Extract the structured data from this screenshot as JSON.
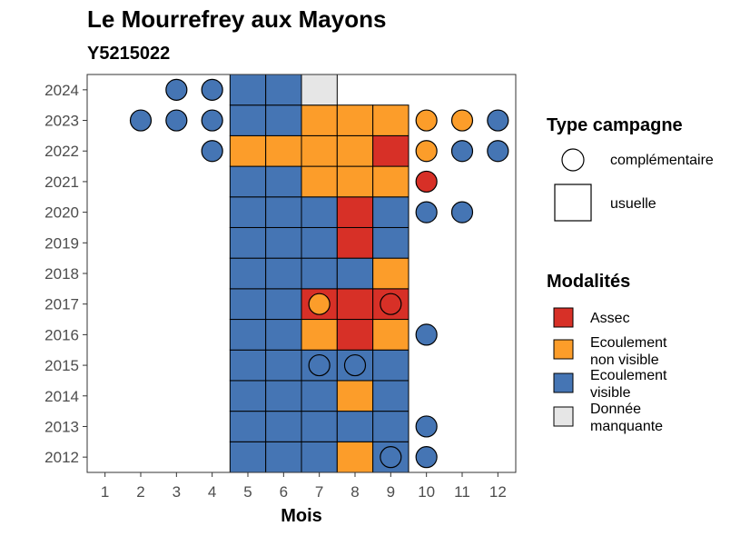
{
  "chart_data": {
    "type": "heatmap",
    "title": "Le Mourrefrey aux Mayons",
    "subtitle": "Y5215022",
    "xlabel": "Mois",
    "ylabel": "",
    "x_ticks": [
      "1",
      "2",
      "3",
      "4",
      "5",
      "6",
      "7",
      "8",
      "9",
      "10",
      "11",
      "12"
    ],
    "y_ticks": [
      "2012",
      "2013",
      "2014",
      "2015",
      "2016",
      "2017",
      "2018",
      "2019",
      "2020",
      "2021",
      "2022",
      "2023",
      "2024"
    ],
    "xlim": [
      0.5,
      12.5
    ],
    "ylim": [
      2011.5,
      2024.5
    ],
    "grid": false,
    "legend_position": "right",
    "colors": {
      "assec": "#d73027",
      "non_visible": "#fc9d2a",
      "visible": "#4575b4",
      "manquante": "#e6e6e6"
    },
    "legend_shape": {
      "title": "Type campagne",
      "items": [
        {
          "shape": "circle",
          "label": "complémentaire"
        },
        {
          "shape": "square",
          "label": "usuelle"
        }
      ]
    },
    "legend_fill": {
      "title": "Modalités",
      "items": [
        {
          "key": "assec",
          "lines": [
            "Assec"
          ]
        },
        {
          "key": "non_visible",
          "lines": [
            "Ecoulement",
            "non visible"
          ]
        },
        {
          "key": "visible",
          "lines": [
            "Ecoulement",
            "visible"
          ]
        },
        {
          "key": "manquante",
          "lines": [
            "Donnée",
            "manquante"
          ]
        }
      ]
    },
    "usuelle": [
      {
        "year": 2012,
        "months": {
          "5": "visible",
          "6": "visible",
          "7": "visible",
          "8": "non_visible",
          "9": "visible"
        }
      },
      {
        "year": 2013,
        "months": {
          "5": "visible",
          "6": "visible",
          "7": "visible",
          "8": "visible",
          "9": "visible"
        }
      },
      {
        "year": 2014,
        "months": {
          "5": "visible",
          "6": "visible",
          "7": "visible",
          "8": "non_visible",
          "9": "visible"
        }
      },
      {
        "year": 2015,
        "months": {
          "5": "visible",
          "6": "visible",
          "7": "visible",
          "8": "visible",
          "9": "visible"
        }
      },
      {
        "year": 2016,
        "months": {
          "5": "visible",
          "6": "visible",
          "7": "non_visible",
          "8": "assec",
          "9": "non_visible"
        }
      },
      {
        "year": 2017,
        "months": {
          "5": "visible",
          "6": "visible",
          "7": "assec",
          "8": "assec",
          "9": "assec"
        }
      },
      {
        "year": 2018,
        "months": {
          "5": "visible",
          "6": "visible",
          "7": "visible",
          "8": "visible",
          "9": "non_visible"
        }
      },
      {
        "year": 2019,
        "months": {
          "5": "visible",
          "6": "visible",
          "7": "visible",
          "8": "assec",
          "9": "visible"
        }
      },
      {
        "year": 2020,
        "months": {
          "5": "visible",
          "6": "visible",
          "7": "visible",
          "8": "assec",
          "9": "visible"
        }
      },
      {
        "year": 2021,
        "months": {
          "5": "visible",
          "6": "visible",
          "7": "non_visible",
          "8": "non_visible",
          "9": "non_visible"
        }
      },
      {
        "year": 2022,
        "months": {
          "5": "non_visible",
          "6": "non_visible",
          "7": "non_visible",
          "8": "non_visible",
          "9": "assec"
        }
      },
      {
        "year": 2023,
        "months": {
          "5": "visible",
          "6": "visible",
          "7": "non_visible",
          "8": "non_visible",
          "9": "non_visible"
        }
      },
      {
        "year": 2024,
        "months": {
          "5": "visible",
          "6": "visible",
          "7": "manquante"
        }
      }
    ],
    "complementaire": [
      {
        "year": 2012,
        "month": 9,
        "value": "visible"
      },
      {
        "year": 2012,
        "month": 10,
        "value": "visible"
      },
      {
        "year": 2013,
        "month": 10,
        "value": "visible"
      },
      {
        "year": 2015,
        "month": 7,
        "value": "visible"
      },
      {
        "year": 2015,
        "month": 8,
        "value": "visible"
      },
      {
        "year": 2016,
        "month": 10,
        "value": "visible"
      },
      {
        "year": 2017,
        "month": 7,
        "value": "non_visible"
      },
      {
        "year": 2017,
        "month": 9,
        "value": "assec"
      },
      {
        "year": 2020,
        "month": 10,
        "value": "visible"
      },
      {
        "year": 2020,
        "month": 11,
        "value": "visible"
      },
      {
        "year": 2021,
        "month": 10,
        "value": "assec"
      },
      {
        "year": 2022,
        "month": 4,
        "value": "visible"
      },
      {
        "year": 2022,
        "month": 10,
        "value": "non_visible"
      },
      {
        "year": 2022,
        "month": 11,
        "value": "visible"
      },
      {
        "year": 2022,
        "month": 12,
        "value": "visible"
      },
      {
        "year": 2023,
        "month": 2,
        "value": "visible"
      },
      {
        "year": 2023,
        "month": 3,
        "value": "visible"
      },
      {
        "year": 2023,
        "month": 4,
        "value": "visible"
      },
      {
        "year": 2023,
        "month": 10,
        "value": "non_visible"
      },
      {
        "year": 2023,
        "month": 11,
        "value": "non_visible"
      },
      {
        "year": 2023,
        "month": 12,
        "value": "visible"
      },
      {
        "year": 2024,
        "month": 3,
        "value": "visible"
      },
      {
        "year": 2024,
        "month": 4,
        "value": "visible"
      }
    ]
  }
}
